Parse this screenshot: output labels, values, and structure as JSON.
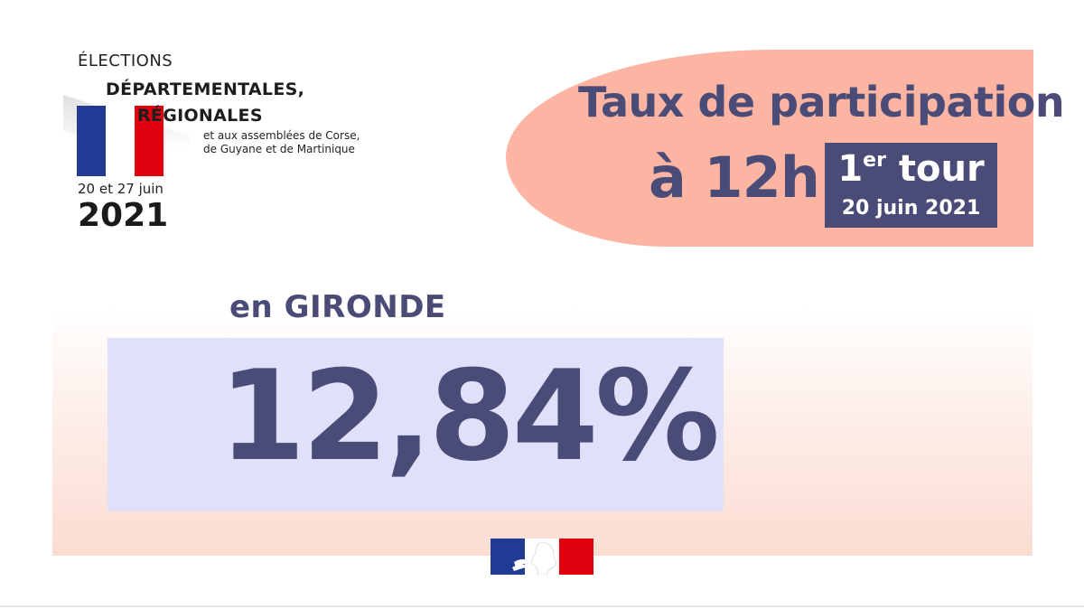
{
  "logo": {
    "line1": "ÉLECTIONS",
    "line2": "DÉPARTEMENTALES,",
    "line3": "RÉGIONALES",
    "small1": "et aux assemblées de Corse,",
    "small2": "de Guyane et de Martinique",
    "dates": "20 et 27 juin",
    "year": "2021",
    "flag_colors": [
      "#1f3b93",
      "#ffffff",
      "#e1000f"
    ],
    "icon": "tricolor-flag-icon"
  },
  "header": {
    "title": "Taux de participation",
    "time": "à 12h",
    "tour_number": "1",
    "tour_suffix": "er",
    "tour_label": " tour",
    "tour_date": "20 juin 2021",
    "bg_color": "#fbb5a2",
    "accent_color": "#4a4c77"
  },
  "result": {
    "location": "en GIRONDE",
    "value": "12,84%",
    "box_color": "#dfe1fa"
  },
  "footer": {
    "icon": "marianne-logo-icon",
    "colors": [
      "#1f3b93",
      "#ffffff",
      "#e1000f"
    ]
  }
}
